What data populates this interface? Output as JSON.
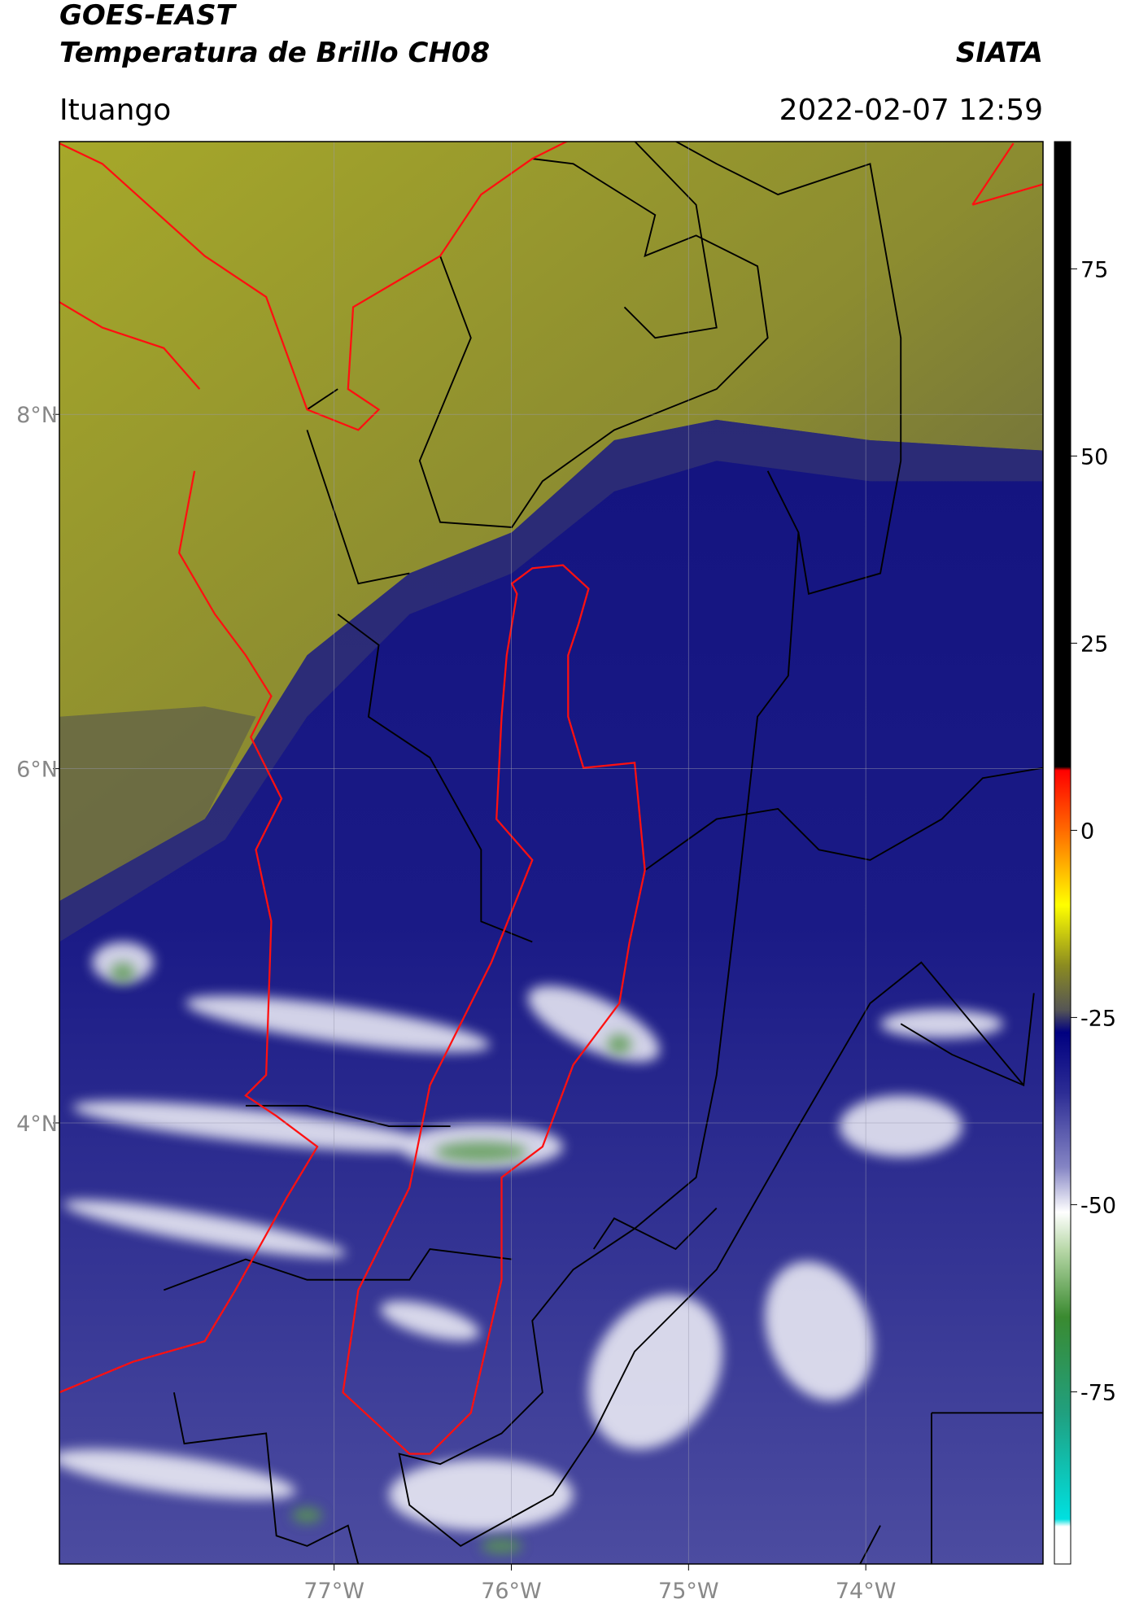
{
  "header": {
    "title": "GOES-EAST",
    "subtitle": "Temperatura de Brillo CH08",
    "source": "SIATA",
    "location": "Ituango",
    "datetime": "2022-02-07 12:59"
  },
  "map": {
    "xlim": [
      -78.55,
      -73.0
    ],
    "ylim": [
      1.51,
      9.54
    ],
    "xticks": [
      {
        "value": -77,
        "label": "77°W"
      },
      {
        "value": -76,
        "label": "76°W"
      },
      {
        "value": -75,
        "label": "75°W"
      },
      {
        "value": -74,
        "label": "74°W"
      }
    ],
    "yticks": [
      {
        "value": 8,
        "label": "8°N"
      },
      {
        "value": 6,
        "label": "6°N"
      },
      {
        "value": 4,
        "label": "4°N"
      }
    ],
    "grid": true
  },
  "colorbar": {
    "lim": [
      -98,
      92
    ],
    "ticks": [
      75,
      50,
      25,
      0,
      -25,
      -50,
      -75
    ],
    "colors": [
      [
        92,
        "#000000"
      ],
      [
        8.5,
        "#000000"
      ],
      [
        8,
        "#ff0000"
      ],
      [
        0,
        "#ff6a00"
      ],
      [
        -10,
        "#ffff00"
      ],
      [
        -18,
        "#8c8c20"
      ],
      [
        -24,
        "#555555"
      ],
      [
        -27,
        "#000080"
      ],
      [
        -35,
        "#2c2c94"
      ],
      [
        -45,
        "#8585c4"
      ],
      [
        -51,
        "#ffffff"
      ],
      [
        -56,
        "#b8d8a8"
      ],
      [
        -65,
        "#3a8a30"
      ],
      [
        -78,
        "#20a080"
      ],
      [
        -92,
        "#00e0e0"
      ],
      [
        -93,
        "#ffffff"
      ],
      [
        -98,
        "#ffffff"
      ]
    ]
  }
}
